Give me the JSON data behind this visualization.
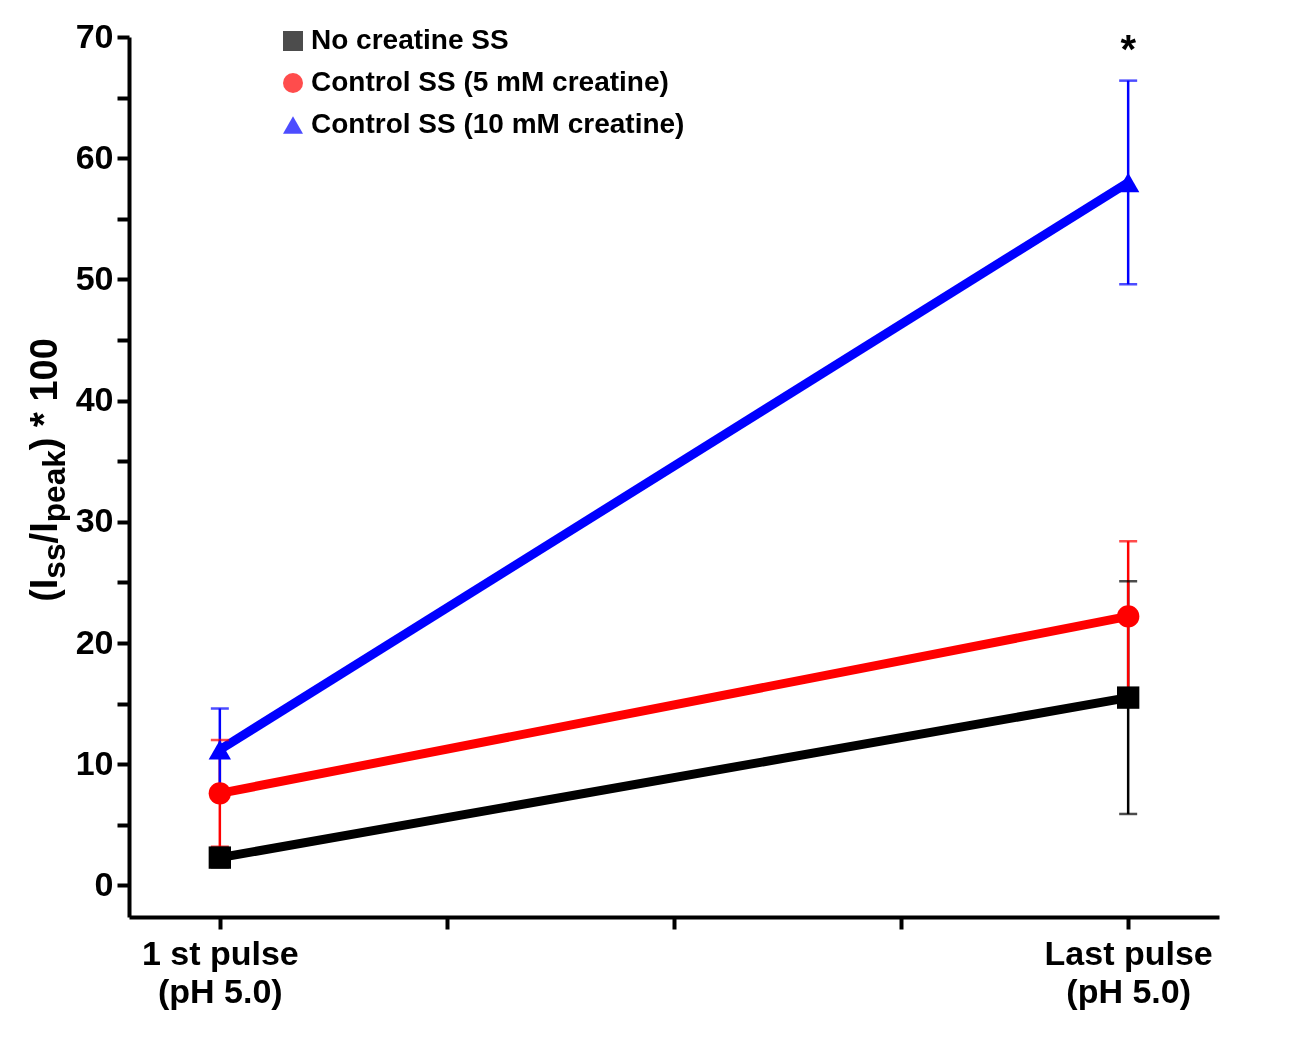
{
  "chart_data": {
    "type": "line",
    "ylabel": "(I$_{ss}$/I$_{peak}$) * 100",
    "categories": [
      "1 st pulse\n(pH 5.0)",
      null,
      null,
      null,
      "Last pulse\n(pH 5.0)"
    ],
    "ylim": [
      -2.6,
      70
    ],
    "yticks": [
      0,
      {
        "value": 5,
        "label": null
      },
      10,
      {
        "value": 15,
        "label": null
      },
      20,
      {
        "value": 25,
        "label": null
      },
      30,
      {
        "value": 35,
        "label": null
      },
      40,
      {
        "value": 45,
        "label": null
      },
      50,
      {
        "value": 55,
        "label": null
      },
      60,
      {
        "value": 65,
        "label": null
      },
      70
    ],
    "series": [
      {
        "name": "No creatine SS",
        "color": "#000000",
        "marker": "square",
        "values": [
          2.3,
          null,
          null,
          null,
          15.5
        ],
        "errors": [
          0.8,
          null,
          null,
          null,
          9.6
        ]
      },
      {
        "name": "Control SS (5 mM creatine)",
        "color": "#ff0000",
        "marker": "circle",
        "values": [
          7.6,
          null,
          null,
          null,
          22.2
        ],
        "errors": [
          4.4,
          null,
          null,
          null,
          6.2
        ]
      },
      {
        "name": "Control SS (10 mM creatine)",
        "color": "#0000ff",
        "marker": "triangle",
        "values": [
          11.2,
          null,
          null,
          null,
          58.0
        ],
        "errors": [
          3.4,
          null,
          null,
          null,
          8.4
        ]
      }
    ],
    "annotations": [
      "*"
    ],
    "grid": false,
    "legend": "top left",
    "line_style": "solid"
  }
}
